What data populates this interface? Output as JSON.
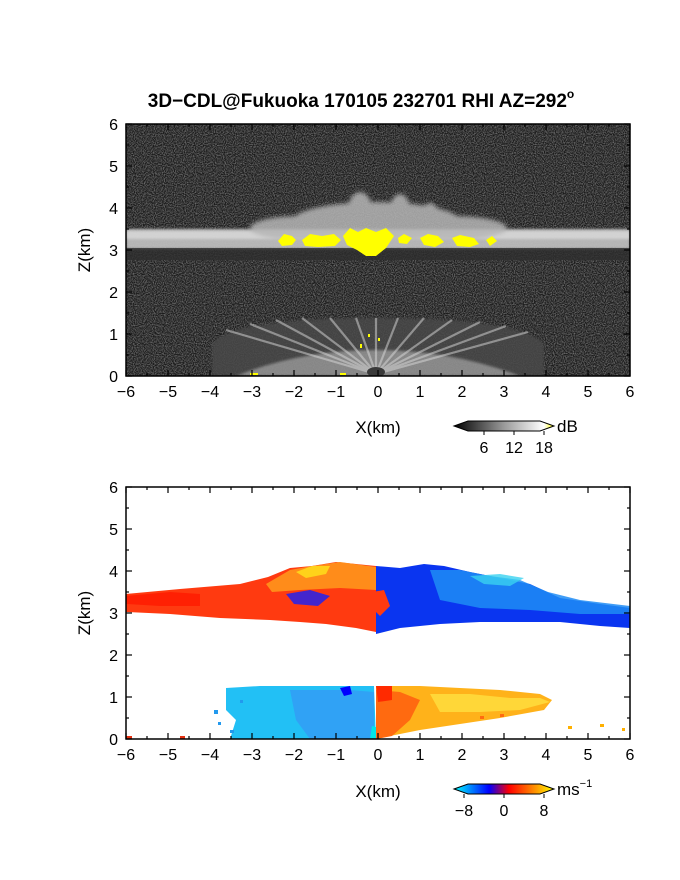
{
  "figure": {
    "title": "3D−CDL@Fukuoka 170105 232701 RHI AZ=292",
    "title_superscript": "o"
  },
  "chart_data": [
    {
      "type": "heatmap",
      "quantity": "backscatter",
      "xlabel": "X(km)",
      "ylabel": "Z(km)",
      "xlim": [
        -6,
        6
      ],
      "ylim": [
        0,
        6
      ],
      "x_ticks": [
        "−6",
        "−5",
        "−4",
        "−3",
        "−2",
        "−1",
        "0",
        "1",
        "2",
        "3",
        "4",
        "5",
        "6"
      ],
      "y_ticks": [
        "0",
        "1",
        "2",
        "3",
        "4",
        "5",
        "6"
      ],
      "colorbar": {
        "unit": "dB",
        "ticks": [
          "6",
          "12",
          "18"
        ],
        "tick_values": [
          6,
          12,
          18
        ],
        "range": [
          0,
          20
        ],
        "colors": [
          "#000000",
          "#ffffff",
          "#ffff00"
        ]
      },
      "features": [
        {
          "name": "cloud layer",
          "x_range": [
            -6,
            6
          ],
          "z_center": 3.25,
          "thickness": 0.45
        },
        {
          "name": "strong echo above 18 dB",
          "x_range": [
            -2.4,
            2.8
          ],
          "z_range": [
            2.9,
            3.4
          ]
        },
        {
          "name": "boundary layer",
          "x_range": [
            -3.5,
            3.5
          ],
          "z_range": [
            0,
            1.2
          ]
        }
      ]
    },
    {
      "type": "heatmap",
      "quantity": "radial velocity",
      "xlabel": "X(km)",
      "ylabel": "Z(km)",
      "xlim": [
        -6,
        6
      ],
      "ylim": [
        0,
        6
      ],
      "x_ticks": [
        "−6",
        "−5",
        "−4",
        "−3",
        "−2",
        "−1",
        "0",
        "1",
        "2",
        "3",
        "4",
        "5",
        "6"
      ],
      "y_ticks": [
        "0",
        "1",
        "2",
        "3",
        "4",
        "5",
        "6"
      ],
      "colorbar": {
        "unit": "ms",
        "unit_superscript": "−1",
        "ticks": [
          "−8",
          "0",
          "8"
        ],
        "tick_values": [
          -8,
          0,
          8
        ],
        "range": [
          -10,
          10
        ],
        "colors": [
          "#00ffff",
          "#0000ff",
          "#ff0000",
          "#ff8c00",
          "#ffff00"
        ]
      },
      "features": [
        {
          "name": "cloud layer west",
          "x_range": [
            -6,
            0
          ],
          "z_range": [
            2.9,
            4.1
          ],
          "velocity": 2
        },
        {
          "name": "cloud layer east",
          "x_range": [
            0,
            6
          ],
          "z_range": [
            2.7,
            4.1
          ],
          "velocity": -6
        },
        {
          "name": "boundary layer west",
          "x_range": [
            -3.5,
            0
          ],
          "z_range": [
            0,
            1.2
          ],
          "velocity": -8
        },
        {
          "name": "boundary layer east",
          "x_range": [
            0,
            4.2
          ],
          "z_range": [
            0,
            1.2
          ],
          "velocity": 6
        }
      ]
    }
  ]
}
